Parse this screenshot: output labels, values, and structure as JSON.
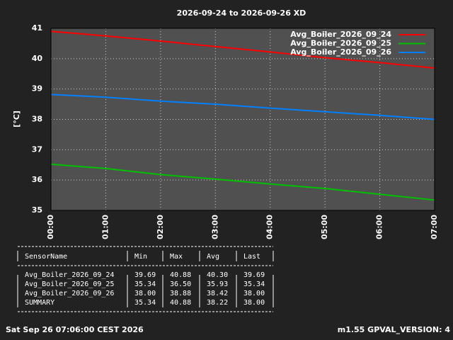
{
  "chart_data": {
    "type": "line",
    "title": "2026-09-24 to 2026-09-26 XD",
    "y_label": "[°C]",
    "x": [
      0,
      1,
      2,
      3,
      4,
      5,
      6,
      7
    ],
    "series": [
      {
        "name": "Avg_Boiler_2026_09_24",
        "color": "#ff0000",
        "values": [
          40.9,
          40.75,
          40.58,
          40.4,
          40.22,
          40.03,
          39.87,
          39.69
        ]
      },
      {
        "name": "Avg_Boiler_2026_09_25",
        "color": "#00c000",
        "values": [
          36.52,
          36.38,
          36.18,
          36.03,
          35.87,
          35.72,
          35.53,
          35.34
        ]
      },
      {
        "name": "Avg_Boiler_2026_09_26",
        "color": "#0080ff",
        "values": [
          38.82,
          38.73,
          38.6,
          38.5,
          38.37,
          38.25,
          38.13,
          38.0
        ]
      }
    ],
    "xlim": [
      0,
      7
    ],
    "xticks": [
      {
        "value": 0,
        "label": "00:00"
      },
      {
        "value": 1,
        "label": "01:00"
      },
      {
        "value": 2,
        "label": "02:00"
      },
      {
        "value": 3,
        "label": "03:00"
      },
      {
        "value": 4,
        "label": "04:00"
      },
      {
        "value": 5,
        "label": "05:00"
      },
      {
        "value": 6,
        "label": "06:00"
      },
      {
        "value": 7,
        "label": "07:00"
      }
    ],
    "ylim": [
      35,
      41
    ],
    "yticks": [
      35,
      36,
      37,
      38,
      39,
      40,
      41
    ],
    "grid": true,
    "legend": "top-right"
  },
  "table": {
    "header": [
      "SensorName",
      "Min",
      "Max",
      "Avg",
      "Last"
    ],
    "rows": [
      [
        "Avg_Boiler_2026_09_24",
        "39.69",
        "40.88",
        "40.30",
        "39.69"
      ],
      [
        "Avg_Boiler_2026_09_25",
        "35.34",
        "36.50",
        "35.93",
        "35.34"
      ],
      [
        "Avg_Boiler_2026_09_26",
        "38.00",
        "38.88",
        "38.42",
        "38.00"
      ],
      [
        "SUMMARY",
        "35.34",
        "40.88",
        "38.22",
        "38.00"
      ]
    ]
  },
  "footer": {
    "date": "Sat Sep 26 07:06:00 CEST 2026",
    "version": "m1.55 GPVAL_VERSION: 4"
  }
}
